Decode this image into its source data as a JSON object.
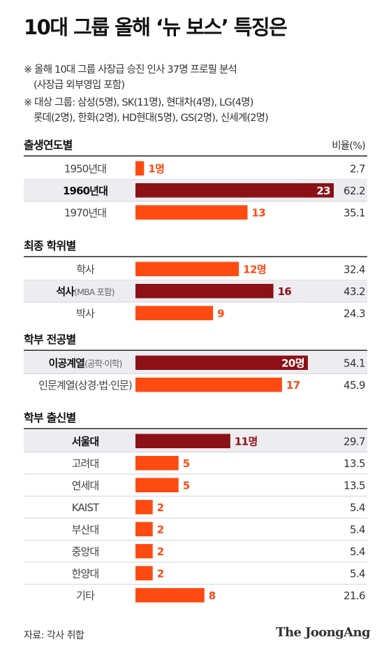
{
  "title": "10대 그룹 올해 ‘뉴 보스’ 특징은",
  "notes": [
    "※ 올해 10대 그룹 사장급 승진 인사 37명 프로필 분석",
    "(사장급 외부영입 포함)",
    "※ 대상 그룹: 삼성(5명), SK(11명), 현대차(4명), LG(4명)",
    "롯데(2명), 한화(2명), HD현대(5명), GS(2명), 신세계(2명)"
  ],
  "source": "자료: 각사 취합",
  "brand": "The JoongAng",
  "colors": {
    "highlight_bar": "#8b1116",
    "normal_bar": "#ff4a12",
    "highlight_row": "#ececf1",
    "rule": "#222222"
  },
  "chart_data": {
    "type": "bar",
    "value_column_header": "비율(%)",
    "sections": [
      {
        "title": "출생연도별",
        "rows": [
          {
            "category": "1950년대",
            "value": 1,
            "label": "1명",
            "percent": "2.7",
            "highlight": false
          },
          {
            "category": "1960년대",
            "value": 23,
            "label": "23",
            "percent": "62.2",
            "highlight": true
          },
          {
            "category": "1970년대",
            "value": 13,
            "label": "13",
            "percent": "35.1",
            "highlight": false
          }
        ]
      },
      {
        "title": "최종 학위별",
        "rows": [
          {
            "category": "학사",
            "value": 12,
            "label": "12명",
            "percent": "32.4",
            "highlight": false
          },
          {
            "category": "석사",
            "category_sub": "(MBA 포함)",
            "value": 16,
            "label": "16",
            "percent": "43.2",
            "highlight": true
          },
          {
            "category": "박사",
            "value": 9,
            "label": "9",
            "percent": "24.3",
            "highlight": false
          }
        ]
      },
      {
        "title": "학부 전공별",
        "rows": [
          {
            "category": "이공계열",
            "category_sub": "(공학·이학)",
            "value": 20,
            "label": "20명",
            "percent": "54.1",
            "highlight": true
          },
          {
            "category": "인문계열(상경·법·인문)",
            "value": 17,
            "label": "17",
            "percent": "45.9",
            "highlight": false
          }
        ]
      },
      {
        "title": "학부 출신별",
        "rows": [
          {
            "category": "서울대",
            "value": 11,
            "label": "11명",
            "percent": "29.7",
            "highlight": true
          },
          {
            "category": "고려대",
            "value": 5,
            "label": "5",
            "percent": "13.5",
            "highlight": false
          },
          {
            "category": "연세대",
            "value": 5,
            "label": "5",
            "percent": "13.5",
            "highlight": false
          },
          {
            "category": "KAIST",
            "value": 2,
            "label": "2",
            "percent": "5.4",
            "highlight": false
          },
          {
            "category": "부산대",
            "value": 2,
            "label": "2",
            "percent": "5.4",
            "highlight": false
          },
          {
            "category": "중앙대",
            "value": 2,
            "label": "2",
            "percent": "5.4",
            "highlight": false
          },
          {
            "category": "한양대",
            "value": 2,
            "label": "2",
            "percent": "5.4",
            "highlight": false
          },
          {
            "category": "기타",
            "value": 8,
            "label": "8",
            "percent": "21.6",
            "highlight": false
          }
        ]
      }
    ]
  }
}
